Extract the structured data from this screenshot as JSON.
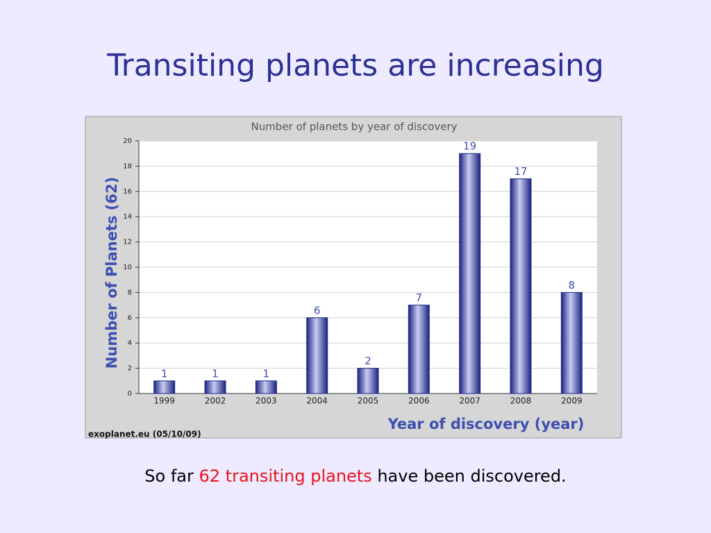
{
  "title": "Transiting planets are increasing",
  "caption": [
    "So far",
    "62 transiting planets",
    "have been discovered."
  ],
  "chart_data": {
    "type": "bar",
    "title": "Number of planets by year of discovery",
    "xlabel": "Year of discovery (year)",
    "ylabel": "Number of Planets (62)",
    "source": "exoplanet.eu (05/10/09)",
    "categories": [
      "1999",
      "2002",
      "2003",
      "2004",
      "2005",
      "2006",
      "2007",
      "2008",
      "2009"
    ],
    "values": [
      1,
      1,
      1,
      6,
      2,
      7,
      19,
      17,
      8
    ],
    "color": "#1f2a8c",
    "ylim": [
      0,
      20
    ],
    "yticks": [
      0,
      2,
      4,
      6,
      8,
      10,
      12,
      14,
      16,
      18,
      20
    ],
    "grid": true
  }
}
